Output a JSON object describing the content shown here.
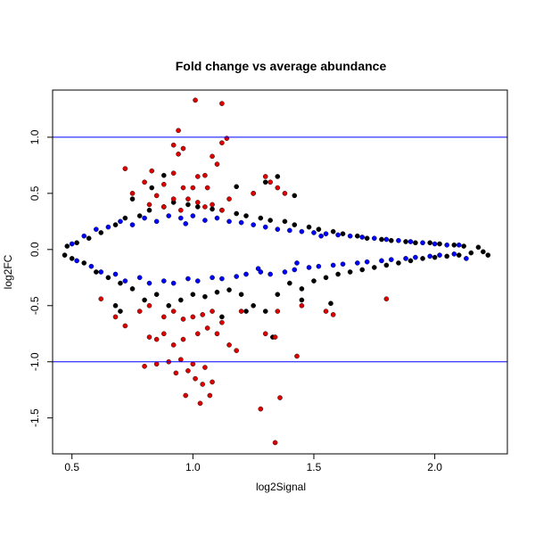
{
  "chart_data": {
    "type": "scatter",
    "title": "Fold change vs average abundance",
    "xlabel": "log2Signal",
    "ylabel": "log2FC",
    "xlim": [
      0.42,
      2.3
    ],
    "ylim": [
      -1.82,
      1.42
    ],
    "xticks": [
      0.5,
      1.0,
      1.5,
      2.0
    ],
    "xtick_labels": [
      "0.5",
      "1.0",
      "1.5",
      "2.0"
    ],
    "yticks": [
      -1.5,
      -1.0,
      -0.5,
      0.0,
      0.5,
      1.0
    ],
    "ytick_labels": [
      "-1.5",
      "-1.0",
      "-0.5",
      "0.0",
      "0.5",
      "1.0"
    ],
    "grid": false,
    "legend": "none",
    "reference_lines": [
      {
        "y": 1.0,
        "color": "#0000ff"
      },
      {
        "y": -1.0,
        "color": "#0000ff"
      }
    ],
    "series": [
      {
        "color": "#000000",
        "points": [
          [
            0.47,
            -0.05
          ],
          [
            0.48,
            0.03
          ],
          [
            0.5,
            -0.08
          ],
          [
            0.52,
            0.06
          ],
          [
            0.55,
            -0.12
          ],
          [
            0.57,
            0.1
          ],
          [
            0.6,
            -0.2
          ],
          [
            0.62,
            0.15
          ],
          [
            0.65,
            -0.25
          ],
          [
            0.68,
            0.22
          ],
          [
            0.7,
            -0.3
          ],
          [
            0.72,
            0.28
          ],
          [
            0.75,
            -0.35
          ],
          [
            0.78,
            0.3
          ],
          [
            0.8,
            -0.45
          ],
          [
            0.82,
            0.35
          ],
          [
            0.85,
            -0.4
          ],
          [
            0.88,
            0.38
          ],
          [
            0.9,
            -0.5
          ],
          [
            0.92,
            0.42
          ],
          [
            0.95,
            -0.45
          ],
          [
            0.98,
            0.4
          ],
          [
            1.0,
            -0.4
          ],
          [
            1.02,
            0.38
          ],
          [
            1.05,
            -0.42
          ],
          [
            1.08,
            0.36
          ],
          [
            1.1,
            -0.38
          ],
          [
            1.12,
            0.35
          ],
          [
            1.15,
            -0.36
          ],
          [
            1.18,
            0.32
          ],
          [
            1.2,
            -0.4
          ],
          [
            1.22,
            0.3
          ],
          [
            1.25,
            -0.5
          ],
          [
            1.28,
            0.28
          ],
          [
            1.3,
            -0.55
          ],
          [
            1.32,
            0.26
          ],
          [
            1.35,
            -0.4
          ],
          [
            1.38,
            0.25
          ],
          [
            1.4,
            -0.3
          ],
          [
            1.42,
            0.22
          ],
          [
            1.45,
            -0.35
          ],
          [
            1.48,
            0.2
          ],
          [
            1.5,
            -0.28
          ],
          [
            1.52,
            0.18
          ],
          [
            1.55,
            -0.25
          ],
          [
            1.58,
            0.16
          ],
          [
            1.6,
            -0.22
          ],
          [
            1.62,
            0.14
          ],
          [
            1.65,
            -0.2
          ],
          [
            1.68,
            0.12
          ],
          [
            1.7,
            -0.18
          ],
          [
            1.72,
            0.1
          ],
          [
            1.75,
            -0.16
          ],
          [
            1.78,
            0.09
          ],
          [
            1.8,
            -0.14
          ],
          [
            1.82,
            0.08
          ],
          [
            1.85,
            -0.12
          ],
          [
            1.88,
            0.07
          ],
          [
            1.9,
            -0.1
          ],
          [
            1.92,
            0.06
          ],
          [
            1.95,
            -0.08
          ],
          [
            1.98,
            0.06
          ],
          [
            2.0,
            -0.07
          ],
          [
            2.02,
            0.05
          ],
          [
            2.05,
            -0.06
          ],
          [
            2.08,
            0.04
          ],
          [
            2.1,
            -0.05
          ],
          [
            2.12,
            0.03
          ],
          [
            2.15,
            -0.03
          ],
          [
            2.18,
            0.02
          ],
          [
            2.2,
            -0.02
          ],
          [
            2.22,
            -0.05
          ],
          [
            0.88,
            0.66
          ],
          [
            0.83,
            0.55
          ],
          [
            1.3,
            0.6
          ],
          [
            1.35,
            0.65
          ],
          [
            1.25,
            0.5
          ],
          [
            1.18,
            0.56
          ],
          [
            1.42,
            0.48
          ],
          [
            0.75,
            0.45
          ],
          [
            0.7,
            -0.55
          ],
          [
            0.68,
            -0.5
          ],
          [
            1.12,
            -0.6
          ],
          [
            1.22,
            -0.55
          ],
          [
            1.45,
            -0.45
          ],
          [
            1.33,
            -0.78
          ],
          [
            1.57,
            -0.48
          ]
        ]
      },
      {
        "color": "#0000ff",
        "points": [
          [
            0.5,
            0.05
          ],
          [
            0.52,
            -0.1
          ],
          [
            0.55,
            0.12
          ],
          [
            0.58,
            -0.15
          ],
          [
            0.6,
            0.18
          ],
          [
            0.62,
            -0.2
          ],
          [
            0.65,
            0.2
          ],
          [
            0.68,
            -0.22
          ],
          [
            0.7,
            0.25
          ],
          [
            0.72,
            -0.28
          ],
          [
            0.75,
            0.22
          ],
          [
            0.78,
            -0.25
          ],
          [
            0.8,
            0.28
          ],
          [
            0.82,
            -0.3
          ],
          [
            0.85,
            0.25
          ],
          [
            0.88,
            -0.28
          ],
          [
            0.9,
            0.3
          ],
          [
            0.92,
            -0.3
          ],
          [
            0.95,
            0.28
          ],
          [
            0.98,
            -0.26
          ],
          [
            1.0,
            0.3
          ],
          [
            1.02,
            -0.28
          ],
          [
            1.05,
            0.26
          ],
          [
            1.08,
            -0.25
          ],
          [
            1.1,
            0.28
          ],
          [
            1.12,
            -0.26
          ],
          [
            1.15,
            0.25
          ],
          [
            1.18,
            -0.24
          ],
          [
            1.2,
            0.24
          ],
          [
            1.22,
            -0.22
          ],
          [
            1.25,
            0.22
          ],
          [
            1.28,
            -0.2
          ],
          [
            1.3,
            0.2
          ],
          [
            1.32,
            -0.22
          ],
          [
            1.35,
            0.18
          ],
          [
            1.38,
            -0.2
          ],
          [
            1.4,
            0.17
          ],
          [
            1.42,
            -0.18
          ],
          [
            1.45,
            0.16
          ],
          [
            1.48,
            -0.16
          ],
          [
            1.5,
            0.15
          ],
          [
            1.52,
            -0.15
          ],
          [
            1.55,
            0.14
          ],
          [
            1.58,
            -0.14
          ],
          [
            1.6,
            0.13
          ],
          [
            1.62,
            -0.13
          ],
          [
            1.65,
            0.12
          ],
          [
            1.68,
            -0.12
          ],
          [
            1.7,
            0.11
          ],
          [
            1.72,
            -0.11
          ],
          [
            1.75,
            0.1
          ],
          [
            1.78,
            -0.1
          ],
          [
            1.8,
            0.09
          ],
          [
            1.82,
            -0.09
          ],
          [
            1.85,
            0.08
          ],
          [
            1.88,
            -0.08
          ],
          [
            1.9,
            0.07
          ],
          [
            1.92,
            -0.07
          ],
          [
            1.95,
            0.06
          ],
          [
            1.98,
            -0.06
          ],
          [
            2.0,
            0.05
          ],
          [
            2.02,
            -0.05
          ],
          [
            2.05,
            0.04
          ],
          [
            2.08,
            -0.04
          ],
          [
            2.1,
            0.04
          ],
          [
            2.13,
            -0.08
          ],
          [
            0.97,
            0.23
          ],
          [
            1.27,
            -0.17
          ],
          [
            1.53,
            0.12
          ],
          [
            1.43,
            -0.12
          ]
        ]
      },
      {
        "color": "#dd0000",
        "points": [
          [
            1.01,
            1.33
          ],
          [
            1.12,
            1.3
          ],
          [
            0.94,
            1.06
          ],
          [
            1.14,
            0.99
          ],
          [
            1.12,
            0.95
          ],
          [
            0.92,
            0.93
          ],
          [
            0.96,
            0.9
          ],
          [
            0.94,
            0.85
          ],
          [
            1.08,
            0.83
          ],
          [
            1.1,
            0.76
          ],
          [
            0.72,
            0.72
          ],
          [
            0.83,
            0.7
          ],
          [
            0.92,
            0.68
          ],
          [
            1.02,
            0.65
          ],
          [
            1.05,
            0.66
          ],
          [
            1.3,
            0.65
          ],
          [
            0.8,
            0.6
          ],
          [
            0.88,
            0.58
          ],
          [
            0.96,
            0.55
          ],
          [
            1.0,
            0.55
          ],
          [
            1.06,
            0.55
          ],
          [
            1.32,
            0.6
          ],
          [
            1.35,
            0.55
          ],
          [
            1.38,
            0.5
          ],
          [
            0.75,
            0.5
          ],
          [
            0.85,
            0.48
          ],
          [
            0.92,
            0.45
          ],
          [
            0.98,
            0.45
          ],
          [
            1.02,
            0.42
          ],
          [
            1.08,
            0.4
          ],
          [
            1.15,
            0.45
          ],
          [
            1.25,
            0.5
          ],
          [
            0.82,
            0.4
          ],
          [
            0.88,
            0.38
          ],
          [
            0.95,
            0.35
          ],
          [
            1.05,
            0.38
          ],
          [
            1.12,
            0.35
          ],
          [
            0.62,
            -0.44
          ],
          [
            0.68,
            -0.6
          ],
          [
            0.72,
            -0.68
          ],
          [
            0.78,
            -0.55
          ],
          [
            0.82,
            -0.5
          ],
          [
            0.88,
            -0.6
          ],
          [
            0.92,
            -0.55
          ],
          [
            0.96,
            -0.62
          ],
          [
            1.0,
            -0.6
          ],
          [
            1.04,
            -0.58
          ],
          [
            1.08,
            -0.55
          ],
          [
            1.12,
            -0.65
          ],
          [
            1.2,
            -0.55
          ],
          [
            1.3,
            -0.75
          ],
          [
            1.34,
            -0.78
          ],
          [
            1.45,
            -0.5
          ],
          [
            1.55,
            -0.55
          ],
          [
            1.58,
            -0.58
          ],
          [
            1.8,
            -0.44
          ],
          [
            1.35,
            -0.55
          ],
          [
            0.82,
            -0.78
          ],
          [
            0.85,
            -0.8
          ],
          [
            0.88,
            -0.75
          ],
          [
            0.92,
            -0.85
          ],
          [
            0.96,
            -0.8
          ],
          [
            1.02,
            -0.75
          ],
          [
            1.06,
            -0.7
          ],
          [
            1.1,
            -0.75
          ],
          [
            1.15,
            -0.85
          ],
          [
            1.18,
            -0.9
          ],
          [
            0.8,
            -1.04
          ],
          [
            0.85,
            -1.02
          ],
          [
            0.9,
            -1.0
          ],
          [
            0.95,
            -0.98
          ],
          [
            1.0,
            -1.02
          ],
          [
            1.05,
            -1.05
          ],
          [
            1.43,
            -0.95
          ],
          [
            0.93,
            -1.1
          ],
          [
            0.98,
            -1.08
          ],
          [
            1.01,
            -1.15
          ],
          [
            1.04,
            -1.2
          ],
          [
            1.08,
            -1.18
          ],
          [
            0.97,
            -1.3
          ],
          [
            1.03,
            -1.37
          ],
          [
            1.07,
            -1.3
          ],
          [
            1.28,
            -1.42
          ],
          [
            1.36,
            -1.32
          ],
          [
            1.34,
            -1.72
          ]
        ]
      }
    ]
  }
}
